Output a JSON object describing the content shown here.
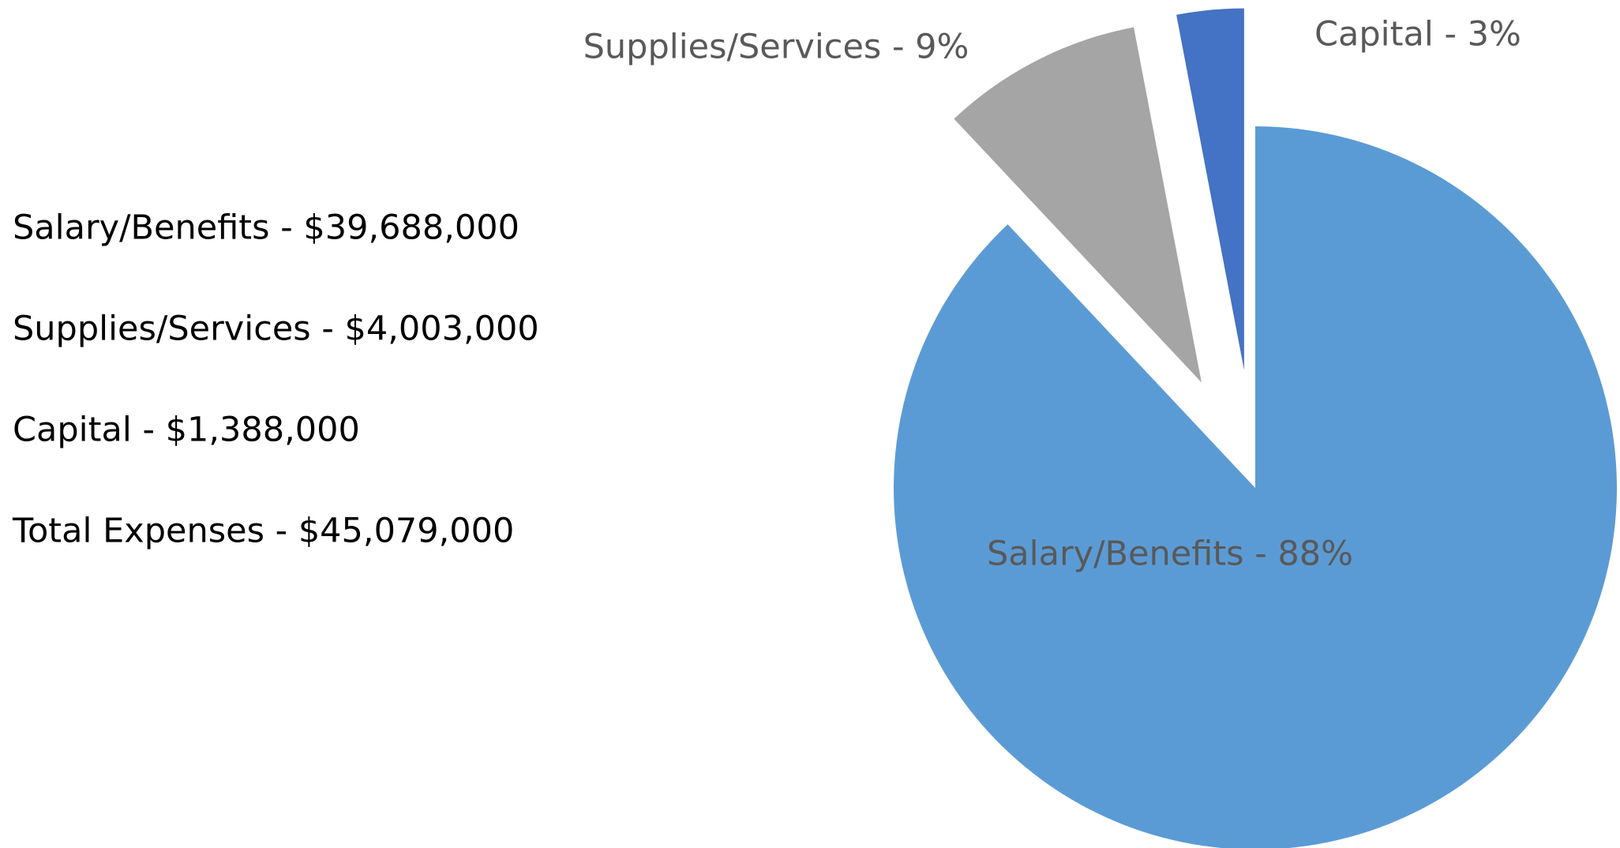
{
  "chart_data": {
    "type": "pie",
    "categories": [
      "Salary/Benefits",
      "Supplies/Services",
      "Capital"
    ],
    "values": [
      88,
      9,
      3
    ],
    "value_labels": [
      "Salary/Benefits - 88%",
      "Supplies/Services - 9%",
      "Capital - 3%"
    ],
    "colors": [
      "#5b9bd5",
      "#a5a5a5",
      "#4472c4"
    ],
    "annotations": [
      "Salary/Benefits - $39,688,000",
      "Supplies/Services - $4,003,000",
      "Capital - $1,388,000",
      "Total Expenses - $45,079,000"
    ]
  }
}
